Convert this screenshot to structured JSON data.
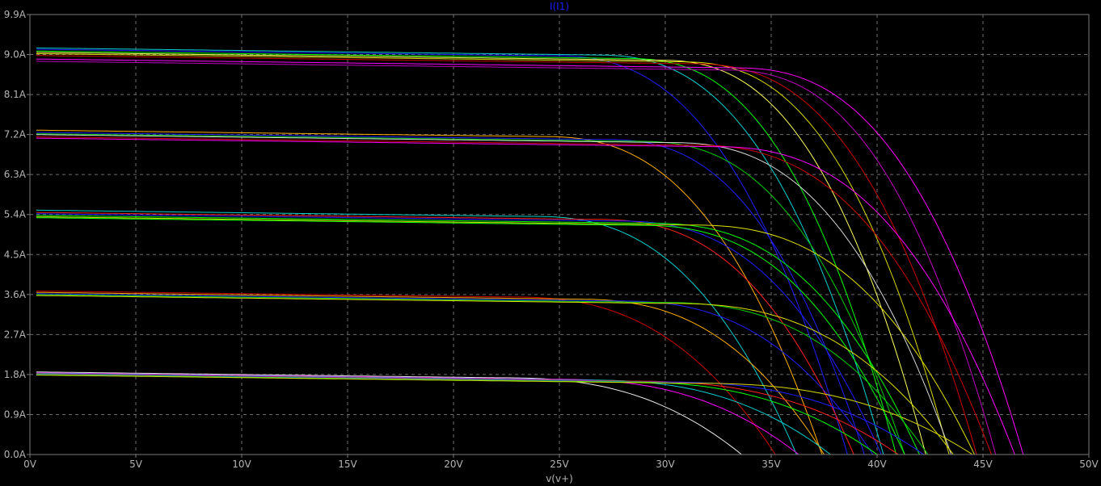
{
  "chart_data": {
    "type": "line",
    "title": "I(I1)",
    "xlabel": "v(v+)",
    "ylabel": "",
    "xlim": [
      0,
      50
    ],
    "ylim": [
      0,
      9.9
    ],
    "grid": true,
    "x_ticks": [
      0,
      5,
      10,
      15,
      20,
      25,
      30,
      35,
      40,
      45,
      50
    ],
    "x_tick_labels": [
      "0V",
      "5V",
      "10V",
      "15V",
      "20V",
      "25V",
      "30V",
      "35V",
      "40V",
      "45V",
      "50V"
    ],
    "y_ticks": [
      0,
      0.9,
      1.8,
      2.7,
      3.6,
      4.5,
      5.4,
      6.3,
      7.2,
      8.1,
      9.0,
      9.9
    ],
    "y_tick_labels": [
      "0.0A",
      "0.9A",
      "1.8A",
      "2.7A",
      "3.6A",
      "4.5A",
      "5.4A",
      "6.3A",
      "7.2A",
      "8.1A",
      "9.0A",
      "9.9A"
    ],
    "series": [
      {
        "color": "#00d0d0",
        "isc": 9.15,
        "voc": 40.3,
        "knee": 26.5
      },
      {
        "color": "#1f1fff",
        "isc": 9.12,
        "voc": 38.6,
        "knee": 24.5
      },
      {
        "color": "#00ff00",
        "isc": 9.08,
        "voc": 40.9,
        "knee": 28.0
      },
      {
        "color": "#ffff60",
        "isc": 9.05,
        "voc": 42.3,
        "knee": 29.5
      },
      {
        "color": "#d8d800",
        "isc": 9.02,
        "voc": 43.4,
        "knee": 30.5
      },
      {
        "color": "#d00000",
        "isc": 8.98,
        "voc": 44.7,
        "knee": 31.0
      },
      {
        "color": "#ff00ff",
        "isc": 8.9,
        "voc": 46.9,
        "knee": 33.0
      },
      {
        "color": "#c000c0",
        "isc": 8.85,
        "voc": 45.6,
        "knee": 32.5
      },
      {
        "color": "#ffb000",
        "isc": 7.3,
        "voc": 37.4,
        "knee": 24.0
      },
      {
        "color": "#1f1fff",
        "isc": 7.25,
        "voc": 39.4,
        "knee": 27.0
      },
      {
        "color": "#00d000",
        "isc": 7.22,
        "voc": 41.3,
        "knee": 28.5
      },
      {
        "color": "#d8d8d8",
        "isc": 7.2,
        "voc": 43.5,
        "knee": 30.0
      },
      {
        "color": "#d00000",
        "isc": 7.15,
        "voc": 45.4,
        "knee": 31.0
      },
      {
        "color": "#ff00ff",
        "isc": 7.12,
        "voc": 46.5,
        "knee": 32.0
      },
      {
        "color": "#00d0d0",
        "isc": 5.5,
        "voc": 36.2,
        "knee": 23.5
      },
      {
        "color": "#ff2020",
        "isc": 5.45,
        "voc": 38.9,
        "knee": 26.5
      },
      {
        "color": "#1f1fff",
        "isc": 5.42,
        "voc": 40.2,
        "knee": 27.5
      },
      {
        "color": "#00ff00",
        "isc": 5.38,
        "voc": 42.0,
        "knee": 29.0
      },
      {
        "color": "#e0e000",
        "isc": 5.35,
        "voc": 44.6,
        "knee": 31.0
      },
      {
        "color": "#00ff00",
        "isc": 5.33,
        "voc": 41.3,
        "knee": 28.5
      },
      {
        "color": "#d00000",
        "isc": 3.68,
        "voc": 35.2,
        "knee": 22.5
      },
      {
        "color": "#ffb000",
        "isc": 3.65,
        "voc": 37.5,
        "knee": 25.5
      },
      {
        "color": "#1f1fff",
        "isc": 3.62,
        "voc": 39.8,
        "knee": 27.5
      },
      {
        "color": "#00d000",
        "isc": 3.6,
        "voc": 42.4,
        "knee": 29.5
      },
      {
        "color": "#e0e000",
        "isc": 3.58,
        "voc": 43.6,
        "knee": 30.0
      },
      {
        "color": "#e8e8e8",
        "isc": 1.86,
        "voc": 33.6,
        "knee": 22.0
      },
      {
        "color": "#ff00ff",
        "isc": 1.84,
        "voc": 36.3,
        "knee": 24.5
      },
      {
        "color": "#00d0d0",
        "isc": 1.83,
        "voc": 37.8,
        "knee": 26.0
      },
      {
        "color": "#ff2020",
        "isc": 1.82,
        "voc": 41.0,
        "knee": 28.0
      },
      {
        "color": "#1f1fff",
        "isc": 1.81,
        "voc": 42.2,
        "knee": 29.5
      },
      {
        "color": "#00ff00",
        "isc": 1.8,
        "voc": 40.0,
        "knee": 27.5
      },
      {
        "color": "#d8d800",
        "isc": 1.79,
        "voc": 44.5,
        "knee": 31.0
      }
    ]
  }
}
